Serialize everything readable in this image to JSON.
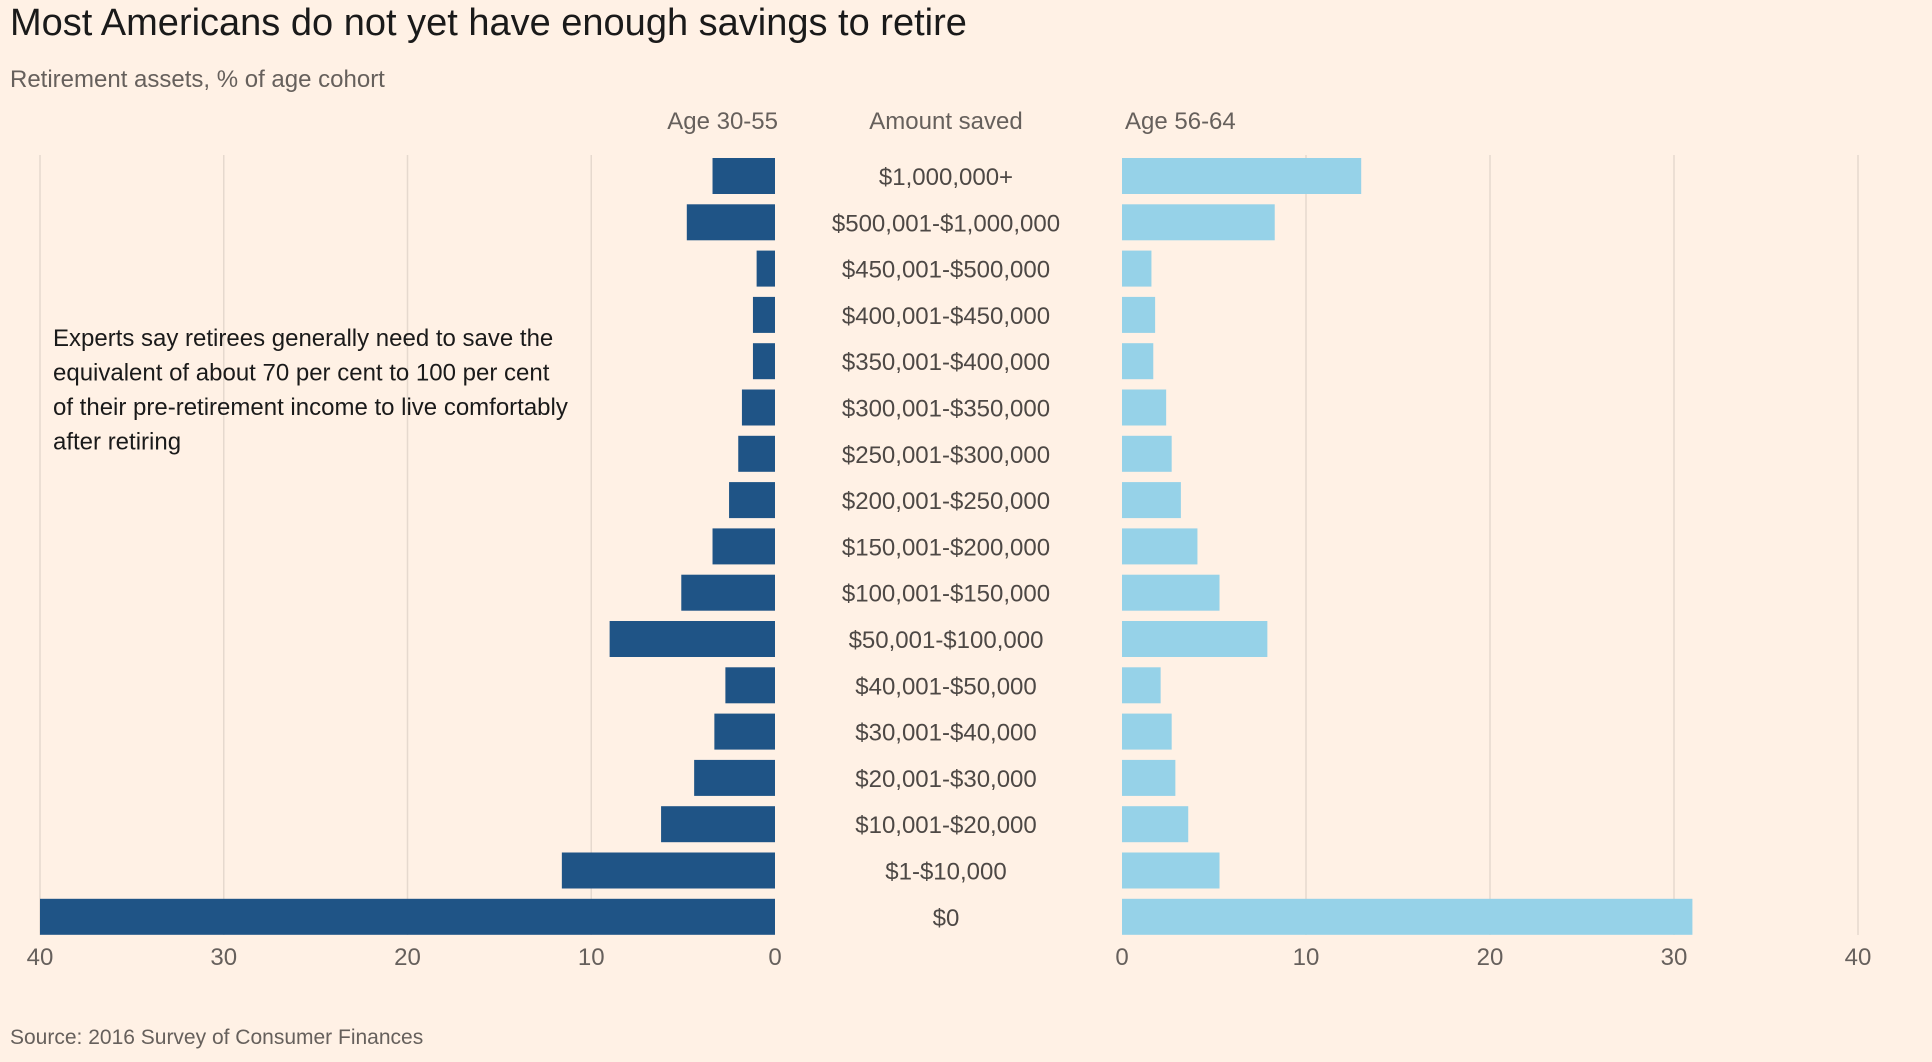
{
  "title": "Most Americans do not yet have enough savings to retire",
  "subtitle": "Retirement assets, % of age cohort",
  "source": "Source: 2016 Survey of Consumer Finances",
  "colors": {
    "background": "#fff1e5",
    "age_30_55": "#1f5486",
    "age_56_64": "#96d2e8",
    "grid": "#e6d9ce"
  },
  "chart_data": {
    "type": "bar",
    "orientation": "horizontal-butterfly",
    "category_header": "Amount saved",
    "categories": [
      "$1,000,000+",
      "$500,001-$1,000,000",
      "$450,001-$500,000",
      "$400,001-$450,000",
      "$350,001-$400,000",
      "$300,001-$350,000",
      "$250,001-$300,000",
      "$200,001-$250,000",
      "$150,001-$200,000",
      "$100,001-$150,000",
      "$50,001-$100,000",
      "$40,001-$50,000",
      "$30,001-$40,000",
      "$20,001-$30,000",
      "$10,001-$20,000",
      "$1-$10,000",
      "$0"
    ],
    "series": [
      {
        "name": "Age 30-55",
        "side": "left",
        "values": [
          3.4,
          4.8,
          1.0,
          1.2,
          1.2,
          1.8,
          2.0,
          2.5,
          3.4,
          5.1,
          9.0,
          2.7,
          3.3,
          4.4,
          6.2,
          11.6,
          40.0
        ]
      },
      {
        "name": "Age 56-64",
        "side": "right",
        "values": [
          13.0,
          8.3,
          1.6,
          1.8,
          1.7,
          2.4,
          2.7,
          3.2,
          4.1,
          5.3,
          7.9,
          2.1,
          2.7,
          2.9,
          3.6,
          5.3,
          31.0
        ]
      }
    ],
    "xlim": [
      0,
      40
    ],
    "ticks": [
      "0",
      "10",
      "20",
      "30",
      "40"
    ],
    "annotation": "Experts say retirees generally need to save the equivalent of about 70 per cent to 100 per cent of their pre-retirement income to live comfortably after retiring",
    "grid": true
  }
}
